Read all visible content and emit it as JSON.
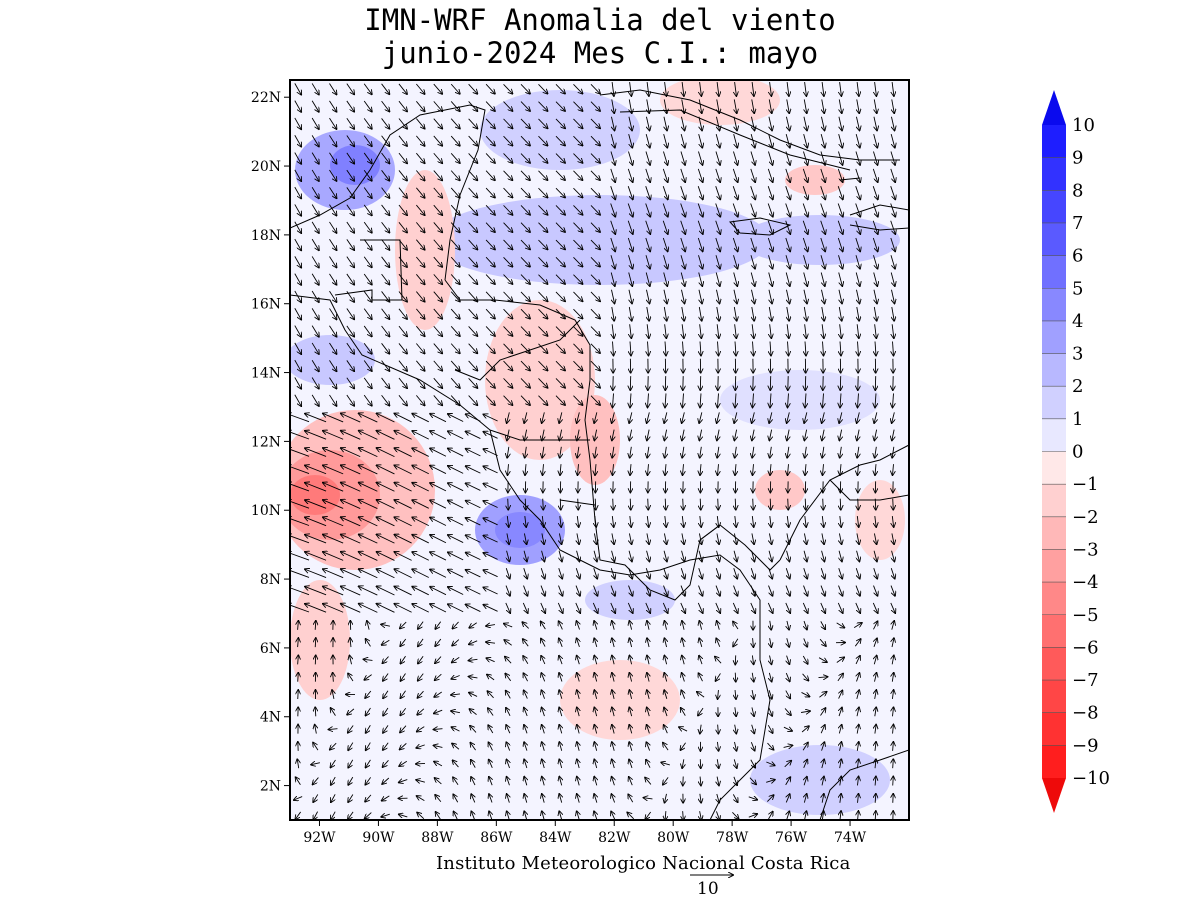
{
  "title": {
    "line1": "IMN-WRF Anomalia del viento",
    "line2": "junio-2024 Mes C.I.: mayo"
  },
  "credit": "Instituto Meteorologico Nacional Costa Rica",
  "reference_vector": {
    "label": "10",
    "magnitude": 10
  },
  "map": {
    "lat_range": [
      1,
      22.5
    ],
    "lon_range": [
      -93,
      -72
    ],
    "lat_ticks": [
      "2N",
      "4N",
      "6N",
      "8N",
      "10N",
      "12N",
      "14N",
      "16N",
      "18N",
      "20N",
      "22N"
    ],
    "lon_ticks": [
      "92W",
      "90W",
      "88W",
      "86W",
      "84W",
      "82W",
      "80W",
      "78W",
      "76W",
      "74W"
    ]
  },
  "colorbar": {
    "labels": [
      "10",
      "9",
      "8",
      "7",
      "6",
      "5",
      "4",
      "3",
      "2",
      "1",
      "0",
      "-1",
      "-2",
      "-3",
      "-4",
      "-5",
      "-6",
      "-7",
      "-8",
      "-9",
      "-10"
    ],
    "colors": [
      "#1e1eff",
      "#3232ff",
      "#4646ff",
      "#5a5aff",
      "#7070ff",
      "#8888ff",
      "#a0a0ff",
      "#b8b8ff",
      "#d0d0ff",
      "#e8e8ff",
      "#ffe8e8",
      "#ffd0d0",
      "#ffb8b8",
      "#ffa0a0",
      "#ff8888",
      "#ff7070",
      "#ff5a5a",
      "#ff4646",
      "#ff3232",
      "#ff1e1e"
    ],
    "max_color": "#0a0aee",
    "min_color": "#ee0a0a"
  }
}
